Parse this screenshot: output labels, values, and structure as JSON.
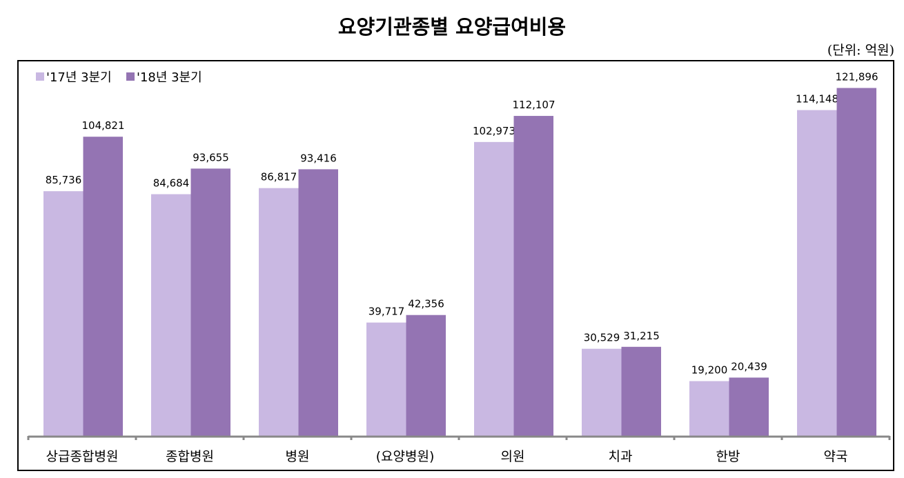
{
  "chart_data": {
    "type": "bar",
    "title": "요양기관종별 요양급여비용",
    "unit_label": "(단위: 억원)",
    "xlabel": "",
    "ylabel": "",
    "ylim": [
      0,
      130000
    ],
    "grid": false,
    "legend_position": "top-left",
    "categories": [
      "상급종합병원",
      "종합병원",
      "병원",
      "(요양병원)",
      "의원",
      "치과",
      "한방",
      "약국"
    ],
    "series": [
      {
        "name": "'17년 3분기",
        "color": "#c9b8e2",
        "values": [
          85736,
          84684,
          86817,
          39717,
          102973,
          30529,
          19200,
          114148
        ]
      },
      {
        "name": "'18년 3분기",
        "color": "#9474b3",
        "values": [
          104821,
          93655,
          93416,
          42356,
          112107,
          31215,
          20439,
          121896
        ]
      }
    ]
  }
}
